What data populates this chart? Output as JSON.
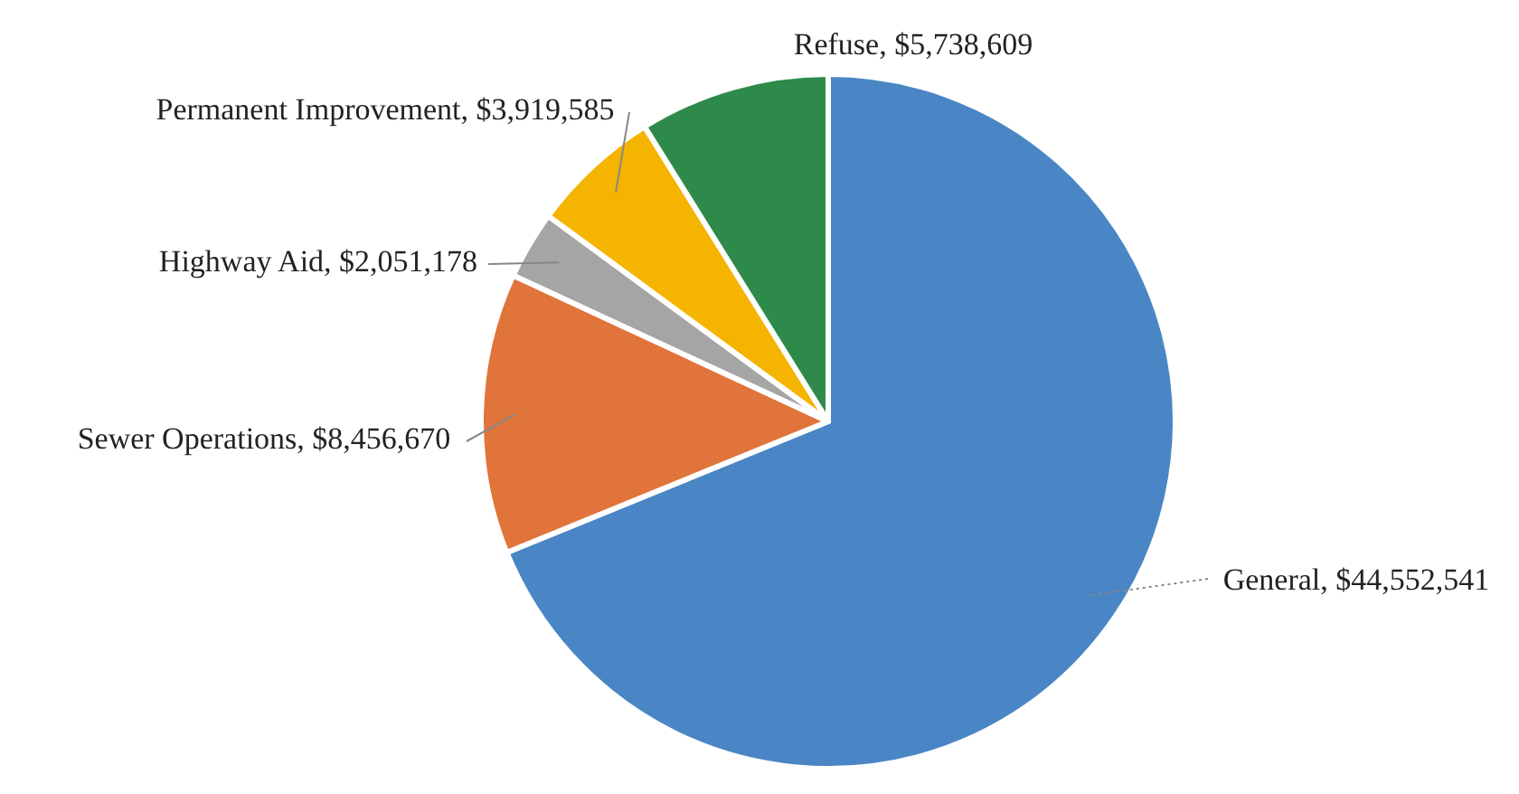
{
  "chart_data": {
    "type": "pie",
    "categories": [
      "General",
      "Sewer Operations",
      "Highway Aid",
      "Permanent Improvement",
      "Refuse"
    ],
    "values": [
      44552541,
      8456670,
      2051178,
      3919585,
      5738609
    ],
    "value_labels": [
      "$44,552,541",
      "$8,456,670",
      "$2,051,178",
      "$3,919,585",
      "$5,738,609"
    ],
    "colors": [
      "#4a86c5",
      "#e0743a",
      "#a5a5a5",
      "#f5b400",
      "#2e8a4a"
    ]
  }
}
